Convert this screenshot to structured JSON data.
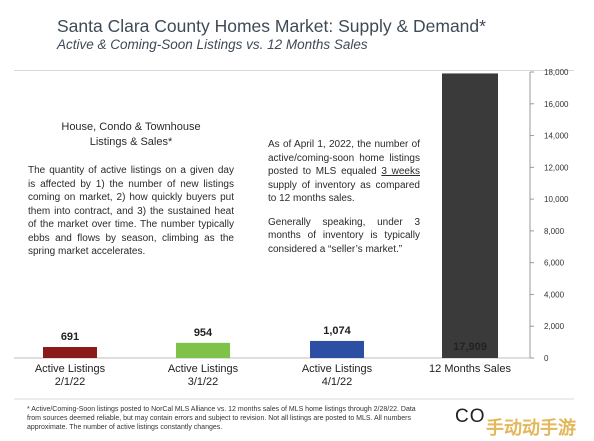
{
  "header": {
    "title": "Santa Clara County Homes Market: Supply & Demand*",
    "subtitle": "Active & Coming-Soon Listings vs. 12 Months Sales"
  },
  "chart_data": {
    "type": "bar",
    "categories": [
      [
        "Active Listings",
        "2/1/22"
      ],
      [
        "Active Listings",
        "3/1/22"
      ],
      [
        "Active Listings",
        "4/1/22"
      ],
      [
        "12 Months Sales"
      ]
    ],
    "values": [
      691,
      954,
      1074,
      17909
    ],
    "value_labels": [
      "691",
      "954",
      "1,074",
      "17,909"
    ],
    "colors": [
      "#8b1a1a",
      "#7ec24a",
      "#2c4fa3",
      "#3a3a3a"
    ],
    "label_colors": [
      "#8b1a1a",
      "#222222",
      "#222222",
      "#ffffff"
    ],
    "ylim": [
      0,
      18000
    ],
    "yticks": [
      "0",
      "2,000",
      "4,000",
      "6,000",
      "8,000",
      "10,000",
      "12,000",
      "14,000",
      "16,000",
      "18,000"
    ],
    "y_axis_side": "right",
    "grid": false
  },
  "notes": {
    "left_heading": "House, Condo & Townhouse Listings & Sales*",
    "left_body": "The quantity of active listings on a given day is affected by 1) the number of new listings coming on market, 2) how quickly buyers put them into contract, and 3) the sustained heat of the market over time. The number typically ebbs and flows by season, climbing as the spring market accelerates.",
    "right_p1_before": "As of April 1, 2022, the number of active/coming-soon home listings posted to MLS equaled ",
    "right_p1_underlined": "3 weeks",
    "right_p1_after": " supply of inventory as compared to 12 months sales.",
    "right_p2": "Generally speaking, under 3 months of inventory is typically considered a “seller’s market.”"
  },
  "footnote": "* Active/Coming-Soon listings posted to NorCal MLS Alliance vs. 12 months sales of MLS home listings through 2/28/22. Data from sources deemed reliable, but may contain errors and subject to revision. Not all listings are posted to MLS. All numbers approximate. The number of active listings constantly changes.",
  "logo_text": "CO",
  "watermark_text": "手动动手游"
}
